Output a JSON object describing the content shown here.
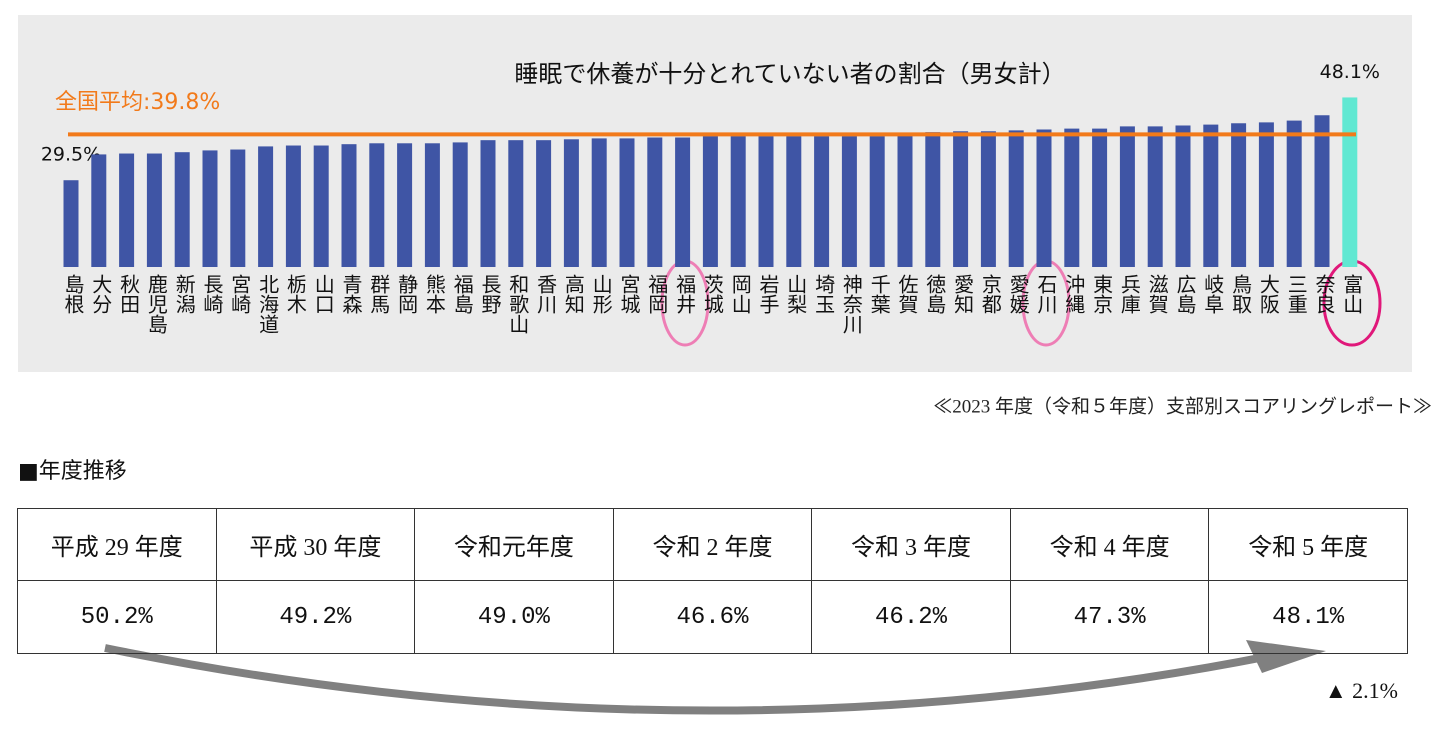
{
  "chart_data": {
    "type": "bar",
    "title": "睡眠で休養が十分とれていない者の割合（男女計）",
    "categories": [
      "島根",
      "大分",
      "秋田",
      "鹿児島",
      "新潟",
      "長崎",
      "宮崎",
      "北海道",
      "栃木",
      "山口",
      "青森",
      "群馬",
      "静岡",
      "熊本",
      "福島",
      "長野",
      "和歌山",
      "香川",
      "高知",
      "山形",
      "宮城",
      "福岡",
      "福井",
      "茨城",
      "岡山",
      "岩手",
      "山梨",
      "埼玉",
      "神奈川",
      "千葉",
      "佐賀",
      "徳島",
      "愛知",
      "京都",
      "愛媛",
      "石川",
      "沖縄",
      "東京",
      "兵庫",
      "滋賀",
      "広島",
      "岐阜",
      "鳥取",
      "大阪",
      "三重",
      "奈良",
      "富山"
    ],
    "values": [
      29.5,
      35.3,
      35.5,
      35.5,
      35.8,
      36.2,
      36.4,
      37.1,
      37.3,
      37.3,
      37.6,
      37.8,
      37.8,
      37.8,
      38.0,
      38.5,
      38.5,
      38.5,
      38.7,
      38.9,
      38.9,
      39.1,
      39.1,
      39.4,
      39.4,
      39.4,
      39.4,
      39.4,
      39.4,
      39.4,
      39.6,
      40.3,
      40.5,
      40.5,
      40.7,
      40.9,
      41.1,
      41.1,
      41.6,
      41.6,
      41.8,
      42.0,
      42.3,
      42.5,
      42.9,
      44.1,
      48.1
    ],
    "value_labels": [
      "29.5%",
      null,
      null,
      null,
      null,
      null,
      null,
      null,
      null,
      null,
      null,
      null,
      null,
      null,
      null,
      null,
      null,
      null,
      null,
      null,
      null,
      null,
      null,
      null,
      null,
      null,
      null,
      null,
      null,
      null,
      null,
      null,
      null,
      null,
      null,
      null,
      null,
      null,
      null,
      null,
      null,
      null,
      null,
      null,
      null,
      null,
      "48.1%"
    ],
    "colors": [
      "#3f55a5",
      "#3f55a5",
      "#3f55a5",
      "#3f55a5",
      "#3f55a5",
      "#3f55a5",
      "#3f55a5",
      "#3f55a5",
      "#3f55a5",
      "#3f55a5",
      "#3f55a5",
      "#3f55a5",
      "#3f55a5",
      "#3f55a5",
      "#3f55a5",
      "#3f55a5",
      "#3f55a5",
      "#3f55a5",
      "#3f55a5",
      "#3f55a5",
      "#3f55a5",
      "#3f55a5",
      "#3f55a5",
      "#3f55a5",
      "#3f55a5",
      "#3f55a5",
      "#3f55a5",
      "#3f55a5",
      "#3f55a5",
      "#3f55a5",
      "#3f55a5",
      "#3f55a5",
      "#3f55a5",
      "#3f55a5",
      "#3f55a5",
      "#3f55a5",
      "#3f55a5",
      "#3f55a5",
      "#3f55a5",
      "#3f55a5",
      "#3f55a5",
      "#3f55a5",
      "#3f55a5",
      "#3f55a5",
      "#3f55a5",
      "#3f55a5",
      "#60e8d2"
    ],
    "ylim": [
      10,
      50
    ],
    "average": {
      "value": 39.8,
      "label": "全国平均:39.8%",
      "color": "#f27a1a"
    }
  },
  "source": "≪2023 年度（令和５年度）支部別スコアリングレポート≫",
  "section_title": "■年度推移",
  "table": {
    "header": [
      "平成 29 年度",
      "平成 30 年度",
      "令和元年度",
      "令和 2 年度",
      "令和 3 年度",
      "令和 4 年度",
      "令和 5 年度"
    ],
    "rows": [
      [
        "50.2%",
        "49.2%",
        "49.0%",
        "46.6%",
        "46.2%",
        "47.3%",
        "48.1%"
      ]
    ]
  },
  "change": "▲ 2.1%"
}
